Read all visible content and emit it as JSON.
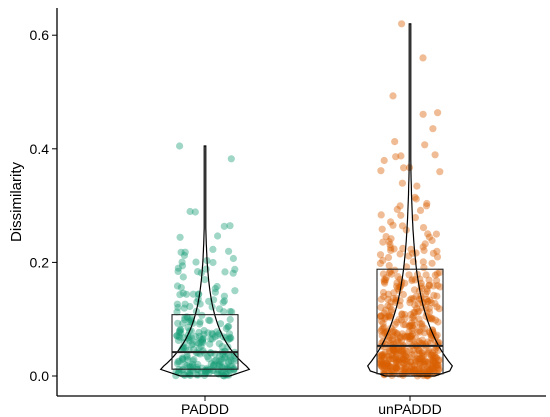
{
  "chart_data": {
    "type": "violin-box-jitter",
    "title": "",
    "xlabel": "",
    "ylabel": "Dissimilarity",
    "ylim": [
      -0.01,
      0.655
    ],
    "yticks": [
      0.0,
      0.2,
      0.4,
      0.6
    ],
    "ytick_labels": [
      "0.0",
      "0.2",
      "0.4",
      "0.6"
    ],
    "categories": [
      "PADDD",
      "unPADDD"
    ],
    "grid": false,
    "legend": "none",
    "series": [
      {
        "category": "PADDD",
        "color": "#1b9e77",
        "n_points": 260,
        "box": {
          "q1": 0.012,
          "median": 0.042,
          "q3": 0.108
        },
        "violin_range": [
          0.0,
          0.405
        ],
        "max": 0.405
      },
      {
        "category": "unPADDD",
        "color": "#d95f02",
        "n_points": 520,
        "box": {
          "q1": 0.004,
          "median": 0.053,
          "q3": 0.188
        },
        "violin_range": [
          0.0,
          0.62
        ],
        "max": 0.62
      }
    ]
  }
}
